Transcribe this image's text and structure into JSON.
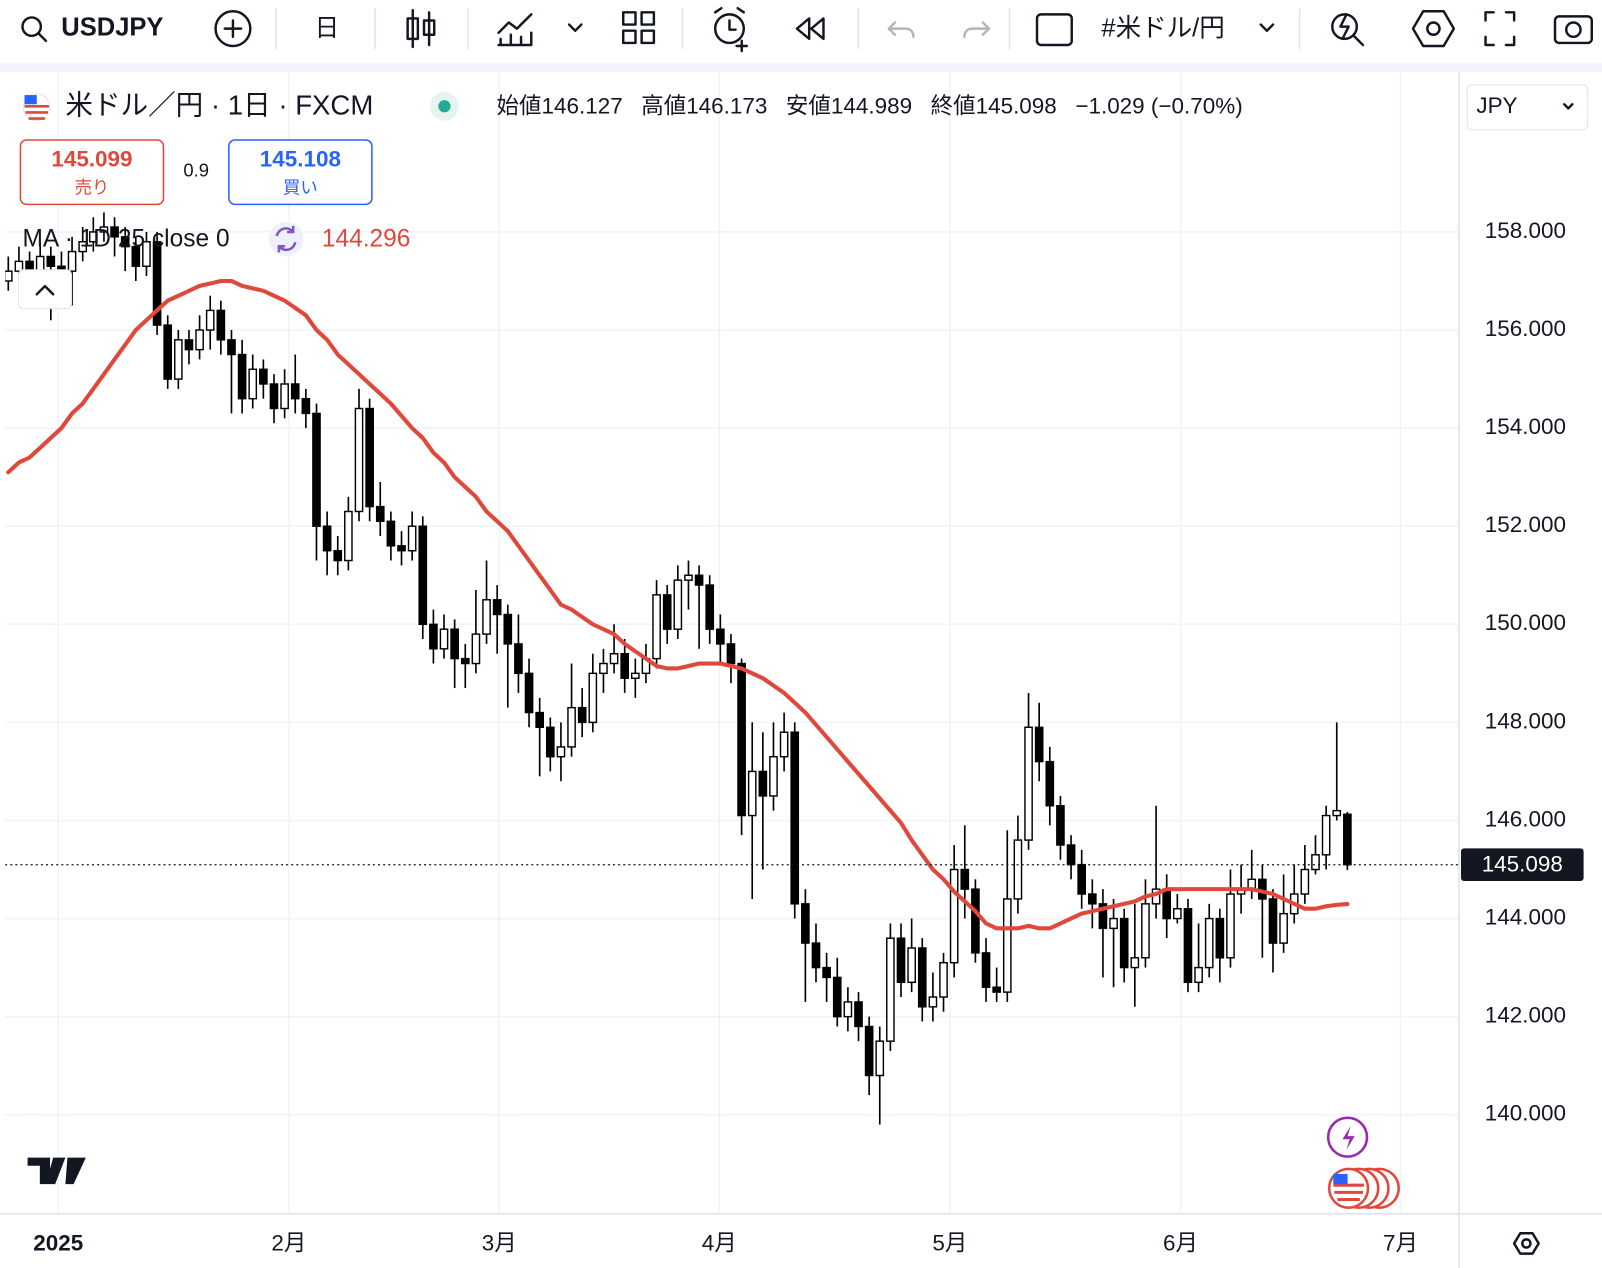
{
  "toolbar": {
    "symbol": "USDJPY",
    "interval": "日",
    "watchlist": "#米ドル/円"
  },
  "header": {
    "title": "米ドル／円 · 1日 · FXCM",
    "ohlc": [
      {
        "label": "始値",
        "value": "146.127"
      },
      {
        "label": "高値",
        "value": "146.173"
      },
      {
        "label": "安値",
        "value": "144.989"
      },
      {
        "label": "終値",
        "value": "145.098"
      }
    ],
    "change": "−1.029 (−0.70%)"
  },
  "trade": {
    "sell_price": "145.099",
    "sell_label": "売り",
    "spread": "0.9",
    "buy_price": "145.108",
    "buy_label": "買い"
  },
  "currency": "JPY",
  "chart_data": {
    "type": "candlestick",
    "open": [
      157.0,
      157.2,
      157.4,
      157.1,
      157.5,
      157.3,
      157.2,
      157.6,
      157.8,
      158.0,
      158.1,
      157.9,
      157.7,
      157.3,
      157.8,
      156.1,
      155.0,
      155.8,
      155.6,
      156.0,
      156.4,
      155.8,
      155.5,
      154.6,
      155.2,
      154.9,
      154.4,
      154.9,
      154.6,
      154.3,
      152.0,
      151.5,
      151.3,
      152.3,
      154.4,
      152.4,
      152.1,
      151.6,
      151.5,
      152.0,
      150.0,
      149.5,
      149.9,
      149.3,
      149.2,
      149.8,
      150.5,
      150.2,
      149.6,
      149.0,
      148.2,
      147.9,
      147.3,
      147.5,
      148.3,
      148.0,
      149.0,
      149.2,
      149.4,
      148.9,
      149.0,
      149.3,
      150.6,
      149.9,
      150.9,
      151.0,
      150.8,
      149.9,
      149.6,
      149.2,
      146.1,
      147.0,
      146.5,
      147.3,
      147.8,
      144.3,
      143.5,
      143.0,
      142.8,
      142.0,
      142.3,
      141.8,
      140.8,
      141.5,
      143.6,
      142.7,
      143.4,
      142.2,
      142.4,
      143.1,
      145.0,
      144.6,
      143.3,
      142.6,
      142.5,
      144.4,
      145.6,
      147.9,
      147.2,
      146.3,
      145.5,
      145.1,
      144.5,
      144.3,
      143.8,
      144.0,
      143.0,
      143.2,
      144.3,
      144.6,
      144.0,
      144.2,
      142.7,
      143.0,
      144.0,
      143.2,
      144.5,
      144.6,
      144.8,
      144.4,
      143.5,
      144.1,
      144.5,
      145.0,
      145.3,
      146.1,
      146.127
    ],
    "high": [
      157.5,
      157.7,
      157.6,
      157.8,
      157.7,
      157.6,
      157.9,
      158.1,
      158.3,
      158.4,
      158.3,
      158.1,
      157.9,
      158.0,
      158.0,
      156.3,
      156.0,
      156.0,
      156.3,
      156.7,
      156.6,
      156.0,
      155.8,
      155.5,
      155.4,
      155.1,
      155.2,
      155.5,
      154.8,
      154.5,
      152.3,
      151.8,
      152.6,
      154.8,
      154.6,
      152.9,
      152.3,
      151.9,
      152.3,
      152.2,
      150.3,
      150.2,
      150.1,
      149.6,
      150.7,
      151.3,
      150.8,
      150.4,
      150.2,
      149.3,
      148.5,
      148.1,
      148.0,
      149.2,
      148.7,
      149.4,
      149.5,
      150.0,
      149.7,
      149.3,
      149.6,
      150.9,
      150.8,
      151.2,
      151.3,
      151.2,
      151.0,
      150.2,
      149.8,
      149.3,
      148.0,
      147.8,
      148.0,
      148.2,
      148.0,
      144.6,
      143.9,
      143.3,
      143.2,
      142.6,
      142.5,
      142.0,
      141.8,
      143.9,
      143.9,
      144.0,
      143.6,
      142.9,
      143.3,
      145.5,
      145.9,
      144.8,
      143.6,
      143.0,
      145.8,
      146.1,
      148.6,
      148.4,
      147.5,
      146.5,
      145.7,
      145.4,
      144.8,
      144.6,
      144.4,
      144.2,
      144.3,
      144.8,
      146.3,
      144.9,
      144.5,
      144.4,
      143.9,
      144.3,
      144.2,
      145.0,
      145.1,
      145.4,
      145.1,
      144.6,
      144.9,
      145.1,
      145.5,
      145.7,
      146.3,
      148.0,
      146.173
    ],
    "low": [
      156.8,
      157.0,
      156.9,
      156.9,
      156.2,
      156.9,
      156.5,
      157.4,
      157.6,
      157.8,
      157.5,
      157.2,
      157.0,
      157.1,
      155.9,
      154.8,
      154.8,
      155.3,
      155.4,
      155.6,
      155.5,
      154.3,
      154.3,
      154.4,
      154.6,
      154.1,
      154.2,
      154.3,
      154.0,
      151.3,
      151.0,
      151.0,
      151.1,
      152.1,
      152.1,
      151.8,
      151.3,
      151.2,
      151.3,
      149.7,
      149.2,
      149.3,
      148.7,
      148.7,
      149.0,
      149.6,
      149.4,
      148.3,
      148.6,
      147.9,
      146.9,
      147.0,
      146.8,
      147.3,
      147.7,
      147.8,
      148.6,
      149.0,
      148.6,
      148.5,
      148.8,
      149.1,
      149.6,
      149.7,
      150.3,
      149.5,
      149.6,
      149.2,
      148.8,
      145.7,
      144.4,
      145.0,
      146.2,
      147.0,
      144.0,
      142.3,
      142.7,
      142.3,
      141.8,
      141.7,
      141.5,
      140.4,
      139.8,
      141.3,
      142.4,
      142.5,
      141.9,
      141.9,
      142.1,
      142.8,
      144.0,
      143.1,
      142.3,
      142.3,
      142.3,
      144.1,
      145.4,
      146.8,
      145.9,
      145.2,
      144.8,
      144.2,
      143.8,
      142.8,
      142.6,
      142.7,
      142.2,
      143.0,
      144.0,
      143.6,
      143.9,
      142.5,
      142.5,
      142.8,
      142.7,
      143.0,
      144.1,
      144.4,
      143.2,
      142.9,
      143.3,
      143.9,
      144.3,
      144.9,
      145.0,
      146.0,
      144.989
    ],
    "close": [
      157.2,
      157.4,
      157.1,
      157.5,
      157.3,
      157.2,
      157.6,
      157.8,
      158.0,
      158.1,
      157.9,
      157.7,
      157.3,
      157.8,
      156.1,
      155.0,
      155.8,
      155.6,
      156.0,
      156.4,
      155.8,
      155.5,
      154.6,
      155.2,
      154.9,
      154.4,
      154.9,
      154.6,
      154.3,
      152.0,
      151.5,
      151.3,
      152.3,
      154.4,
      152.4,
      152.1,
      151.6,
      151.5,
      152.0,
      150.0,
      149.5,
      149.9,
      149.3,
      149.2,
      149.8,
      150.5,
      150.2,
      149.6,
      149.0,
      148.2,
      147.9,
      147.3,
      147.5,
      148.3,
      148.0,
      149.0,
      149.2,
      149.4,
      148.9,
      149.0,
      149.3,
      150.6,
      149.9,
      150.9,
      151.0,
      150.8,
      149.9,
      149.6,
      149.2,
      146.1,
      147.0,
      146.5,
      147.3,
      147.8,
      144.3,
      143.5,
      143.0,
      142.8,
      142.0,
      142.3,
      141.8,
      140.8,
      141.5,
      143.6,
      142.7,
      143.4,
      142.2,
      142.4,
      143.1,
      145.0,
      144.6,
      143.3,
      142.6,
      142.5,
      144.4,
      145.6,
      147.9,
      147.2,
      146.3,
      145.5,
      145.1,
      144.5,
      144.3,
      143.8,
      144.0,
      143.0,
      143.2,
      144.3,
      144.6,
      144.0,
      144.2,
      142.7,
      143.0,
      144.0,
      143.2,
      144.5,
      144.6,
      144.8,
      144.4,
      143.5,
      144.1,
      144.5,
      145.0,
      145.3,
      146.1,
      146.2,
      145.098
    ],
    "series": [
      {
        "name": "MA · 1D 25 close 0",
        "color": "#e0483c",
        "values": [
          153.1,
          153.3,
          153.4,
          153.6,
          153.8,
          154.0,
          154.3,
          154.5,
          154.8,
          155.1,
          155.4,
          155.7,
          156.0,
          156.2,
          156.4,
          156.6,
          156.7,
          156.8,
          156.9,
          156.95,
          157.0,
          157.0,
          156.9,
          156.85,
          156.8,
          156.7,
          156.6,
          156.45,
          156.3,
          156.0,
          155.8,
          155.5,
          155.3,
          155.1,
          154.9,
          154.7,
          154.5,
          154.25,
          154.0,
          153.8,
          153.5,
          153.3,
          153.0,
          152.8,
          152.6,
          152.3,
          152.1,
          151.9,
          151.6,
          151.3,
          151.0,
          150.7,
          150.4,
          150.3,
          150.15,
          150.0,
          149.9,
          149.8,
          149.6,
          149.45,
          149.3,
          149.15,
          149.1,
          149.1,
          149.15,
          149.2,
          149.2,
          149.2,
          149.15,
          149.1,
          149.0,
          148.9,
          148.75,
          148.6,
          148.4,
          148.2,
          147.95,
          147.7,
          147.45,
          147.2,
          146.95,
          146.7,
          146.45,
          146.2,
          145.95,
          145.6,
          145.3,
          145.0,
          144.8,
          144.55,
          144.35,
          144.15,
          143.9,
          143.8,
          143.8,
          143.8,
          143.85,
          143.8,
          143.8,
          143.9,
          144.0,
          144.1,
          144.15,
          144.2,
          144.25,
          144.3,
          144.35,
          144.45,
          144.5,
          144.6,
          144.6,
          144.6,
          144.6,
          144.6,
          144.6,
          144.6,
          144.6,
          144.6,
          144.55,
          144.5,
          144.4,
          144.3,
          144.2,
          144.2,
          144.25,
          144.28,
          144.296
        ]
      }
    ],
    "up_color": "#ffffff",
    "down_color": "#000000",
    "xlim": [
      -0.3,
      136.5
    ],
    "xticks": [
      {
        "value": 4.7,
        "label": "2025"
      },
      {
        "value": 26.4,
        "label": "2月"
      },
      {
        "value": 46.2,
        "label": "3月"
      },
      {
        "value": 66.9,
        "label": "4月"
      },
      {
        "value": 88.6,
        "label": "5月"
      },
      {
        "value": 110.3,
        "label": "6月"
      },
      {
        "value": 131.0,
        "label": "7月"
      }
    ],
    "ylim": [
      137.98,
      161.27
    ],
    "yticks": [
      {
        "value": 140,
        "label": "140.000"
      },
      {
        "value": 142,
        "label": "142.000"
      },
      {
        "value": 144,
        "label": "144.000"
      },
      {
        "value": 146,
        "label": "146.000"
      },
      {
        "value": 148,
        "label": "148.000"
      },
      {
        "value": 150,
        "label": "150.000"
      },
      {
        "value": 152,
        "label": "152.000"
      },
      {
        "value": 154,
        "label": "154.000"
      },
      {
        "value": 156,
        "label": "156.000"
      },
      {
        "value": 158,
        "label": "158.000"
      }
    ],
    "grid": true
  }
}
